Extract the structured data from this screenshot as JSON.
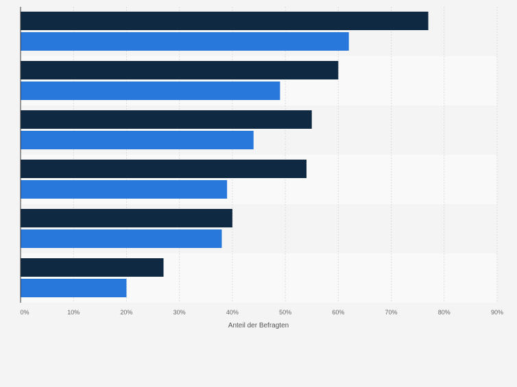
{
  "chart_data": {
    "type": "bar",
    "orientation": "horizontal",
    "categories": [
      "",
      "",
      "",
      "",
      "",
      ""
    ],
    "series": [
      {
        "values": [
          77,
          60,
          55,
          54,
          40,
          27
        ]
      },
      {
        "values": [
          62,
          49,
          44,
          39,
          38,
          20
        ]
      }
    ],
    "xlabel": "Anteil der Befragten",
    "xlim": [
      0,
      90
    ],
    "x_ticks": [
      0,
      10,
      20,
      30,
      40,
      50,
      60,
      70,
      80,
      90
    ],
    "tick_format": "{v}%",
    "grid": true,
    "legend": "none",
    "colors": {
      "series": [
        "#0f2942",
        "#2878dc"
      ],
      "band_a": "#f4f4f4",
      "band_b": "#f9f9f9",
      "grid": "#dcdcdc",
      "axis": "#333333",
      "tick_text": "#666666"
    }
  }
}
